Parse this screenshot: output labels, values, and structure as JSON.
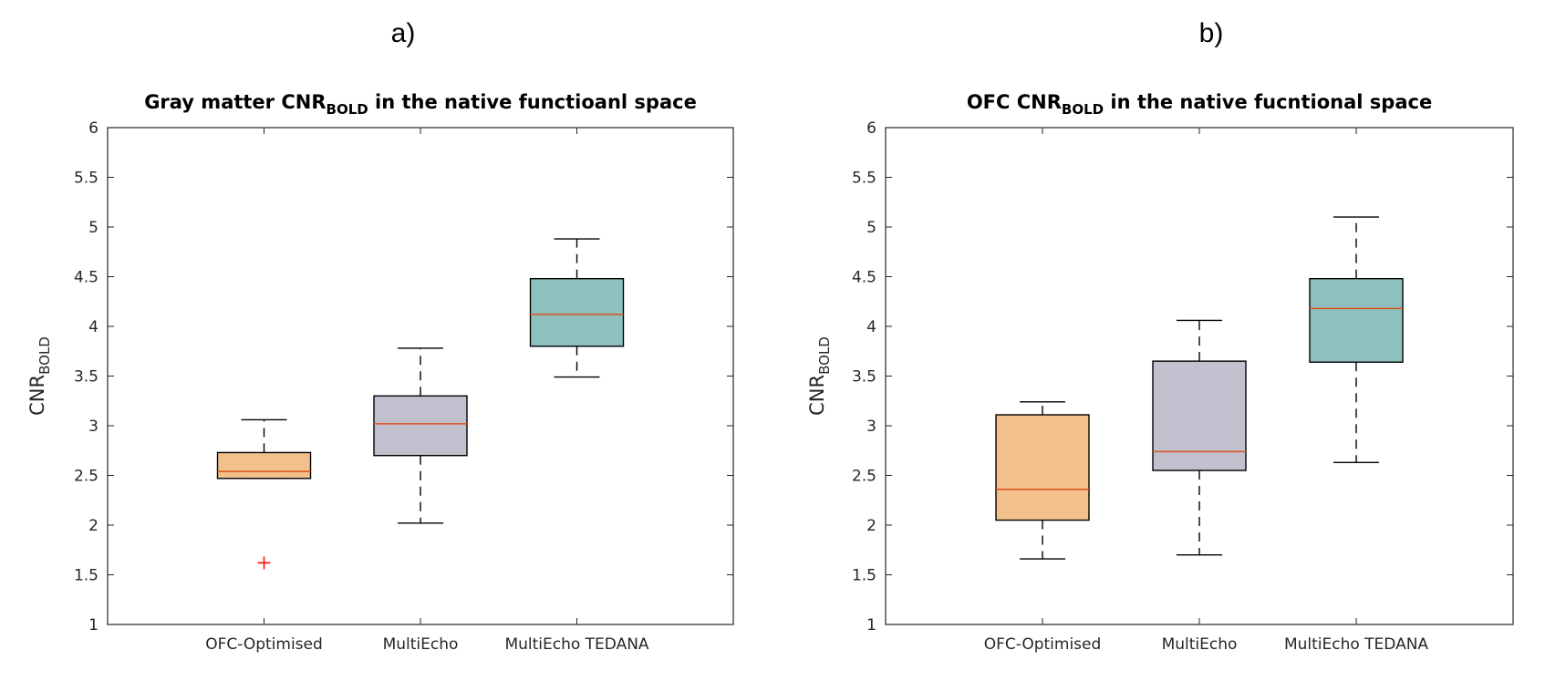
{
  "panels": [
    {
      "label": "a)",
      "title_main": "Gray matter CNR",
      "title_sub": "BOLD",
      "title_rest": " in the native functioanl space",
      "chart_data": {
        "type": "box",
        "title": "Gray matter CNR_BOLD in the native functioanl space",
        "ylabel_main": "CNR",
        "ylabel_sub": "BOLD",
        "ylim": [
          1,
          6
        ],
        "yticks": [
          1,
          1.5,
          2,
          2.5,
          3,
          3.5,
          4,
          4.5,
          5,
          5.5,
          6
        ],
        "categories": [
          "OFC-Optimised",
          "MultiEcho",
          "MultiEcho TEDANA"
        ],
        "boxes": [
          {
            "name": "OFC-Optimised",
            "whisker_low": 2.47,
            "q1": 2.47,
            "median": 2.54,
            "q3": 2.73,
            "whisker_high": 3.06,
            "outliers": [
              1.62
            ],
            "color": "#f2c08c"
          },
          {
            "name": "MultiEcho",
            "whisker_low": 2.02,
            "q1": 2.7,
            "median": 3.02,
            "q3": 3.3,
            "whisker_high": 3.78,
            "outliers": [],
            "color": "#c0c0ce"
          },
          {
            "name": "MultiEcho TEDANA",
            "whisker_low": 3.49,
            "q1": 3.8,
            "median": 4.12,
            "q3": 4.48,
            "whisker_high": 4.88,
            "outliers": [],
            "color": "#8fc0c0"
          }
        ]
      }
    },
    {
      "label": "b)",
      "title_main": "OFC CNR",
      "title_sub": "BOLD",
      "title_rest": " in the native fucntional space",
      "chart_data": {
        "type": "box",
        "title": "OFC CNR_BOLD in the native fucntional space",
        "ylabel_main": "CNR",
        "ylabel_sub": "BOLD",
        "ylim": [
          1,
          6
        ],
        "yticks": [
          1,
          1.5,
          2,
          2.5,
          3,
          3.5,
          4,
          4.5,
          5,
          5.5,
          6
        ],
        "categories": [
          "OFC-Optimised",
          "MultiEcho",
          "MultiEcho TEDANA"
        ],
        "boxes": [
          {
            "name": "OFC-Optimised",
            "whisker_low": 1.66,
            "q1": 2.05,
            "median": 2.36,
            "q3": 3.11,
            "whisker_high": 3.24,
            "outliers": [],
            "color": "#f2c08c"
          },
          {
            "name": "MultiEcho",
            "whisker_low": 1.7,
            "q1": 2.55,
            "median": 2.74,
            "q3": 3.65,
            "whisker_high": 4.06,
            "outliers": [],
            "color": "#c0c0ce"
          },
          {
            "name": "MultiEcho TEDANA",
            "whisker_low": 2.63,
            "q1": 3.64,
            "median": 4.18,
            "q3": 4.48,
            "whisker_high": 5.1,
            "outliers": [],
            "color": "#8fc0c0"
          }
        ]
      }
    }
  ],
  "colors": {
    "median": "#d95319",
    "outlier": "#ff0000",
    "axis": "#262626"
  }
}
